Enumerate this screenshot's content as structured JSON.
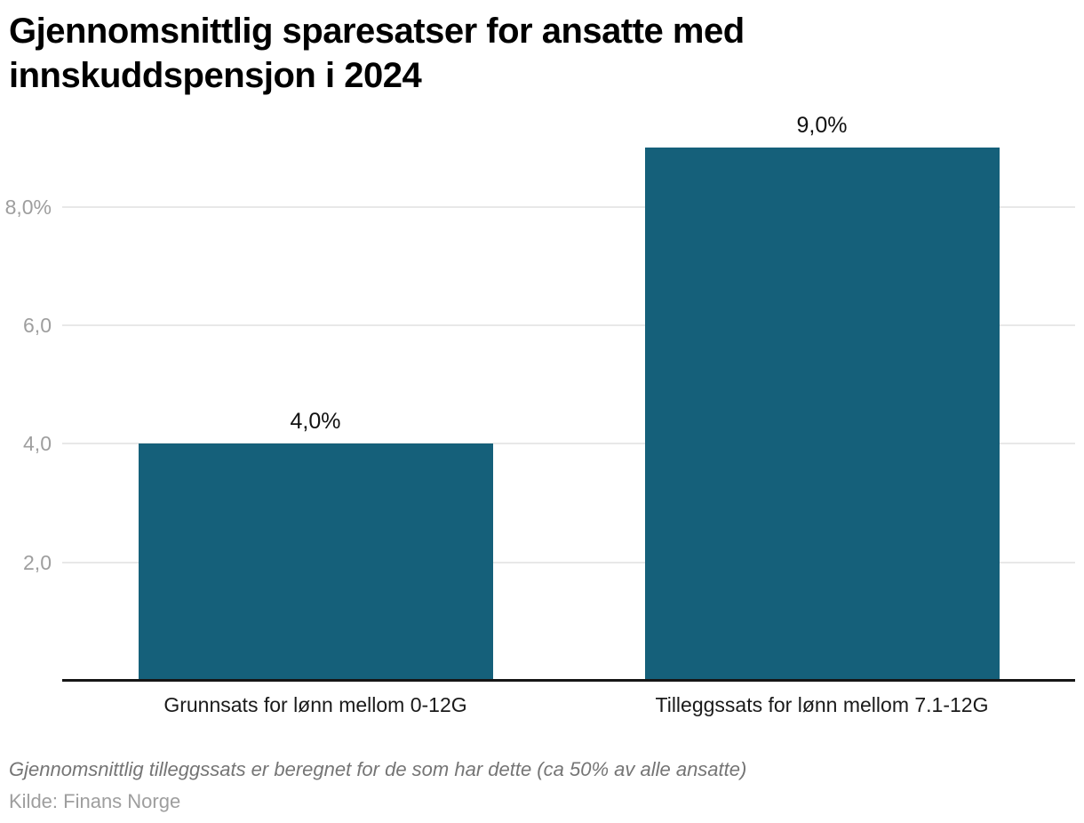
{
  "page": {
    "title_lines": [
      "Gjennomsnittlig sparesatser for ansatte med",
      "innskuddspensjon i 2024"
    ],
    "footnote": "Gjennomsnittlig tilleggssats er beregnet for de som har dette (ca 50% av alle ansatte)",
    "source": "Kilde: Finans Norge"
  },
  "colors": {
    "bar": "#15607a",
    "grid": "#e8e8e8",
    "axis": "#161616",
    "tick_label": "#9e9e9e",
    "value_label": "#111111",
    "category_label": "#1a1a1a",
    "footnote": "#757575",
    "source": "#9e9e9e"
  },
  "chart_data": {
    "type": "bar",
    "title": "Gjennomsnittlig sparesatser for ansatte med innskuddspensjon i 2024",
    "categories": [
      "Grunnsats for lønn mellom 0-12G",
      "Tilleggssats for lønn mellom 7.1-12G"
    ],
    "values": [
      4.0,
      9.0
    ],
    "value_labels": [
      "4,0%",
      "9,0%"
    ],
    "xlabel": "",
    "ylabel": "",
    "ylim": [
      0,
      9
    ],
    "yticks": [
      2,
      4,
      6,
      8
    ],
    "ytick_labels": [
      "2,0",
      "4,0",
      "6,0",
      "8,0%"
    ],
    "grid": "horizontal",
    "legend": "none",
    "footnote": "Gjennomsnittlig tilleggssats er beregnet for de som har dette (ca 50% av alle ansatte)",
    "source": "Kilde: Finans Norge"
  }
}
